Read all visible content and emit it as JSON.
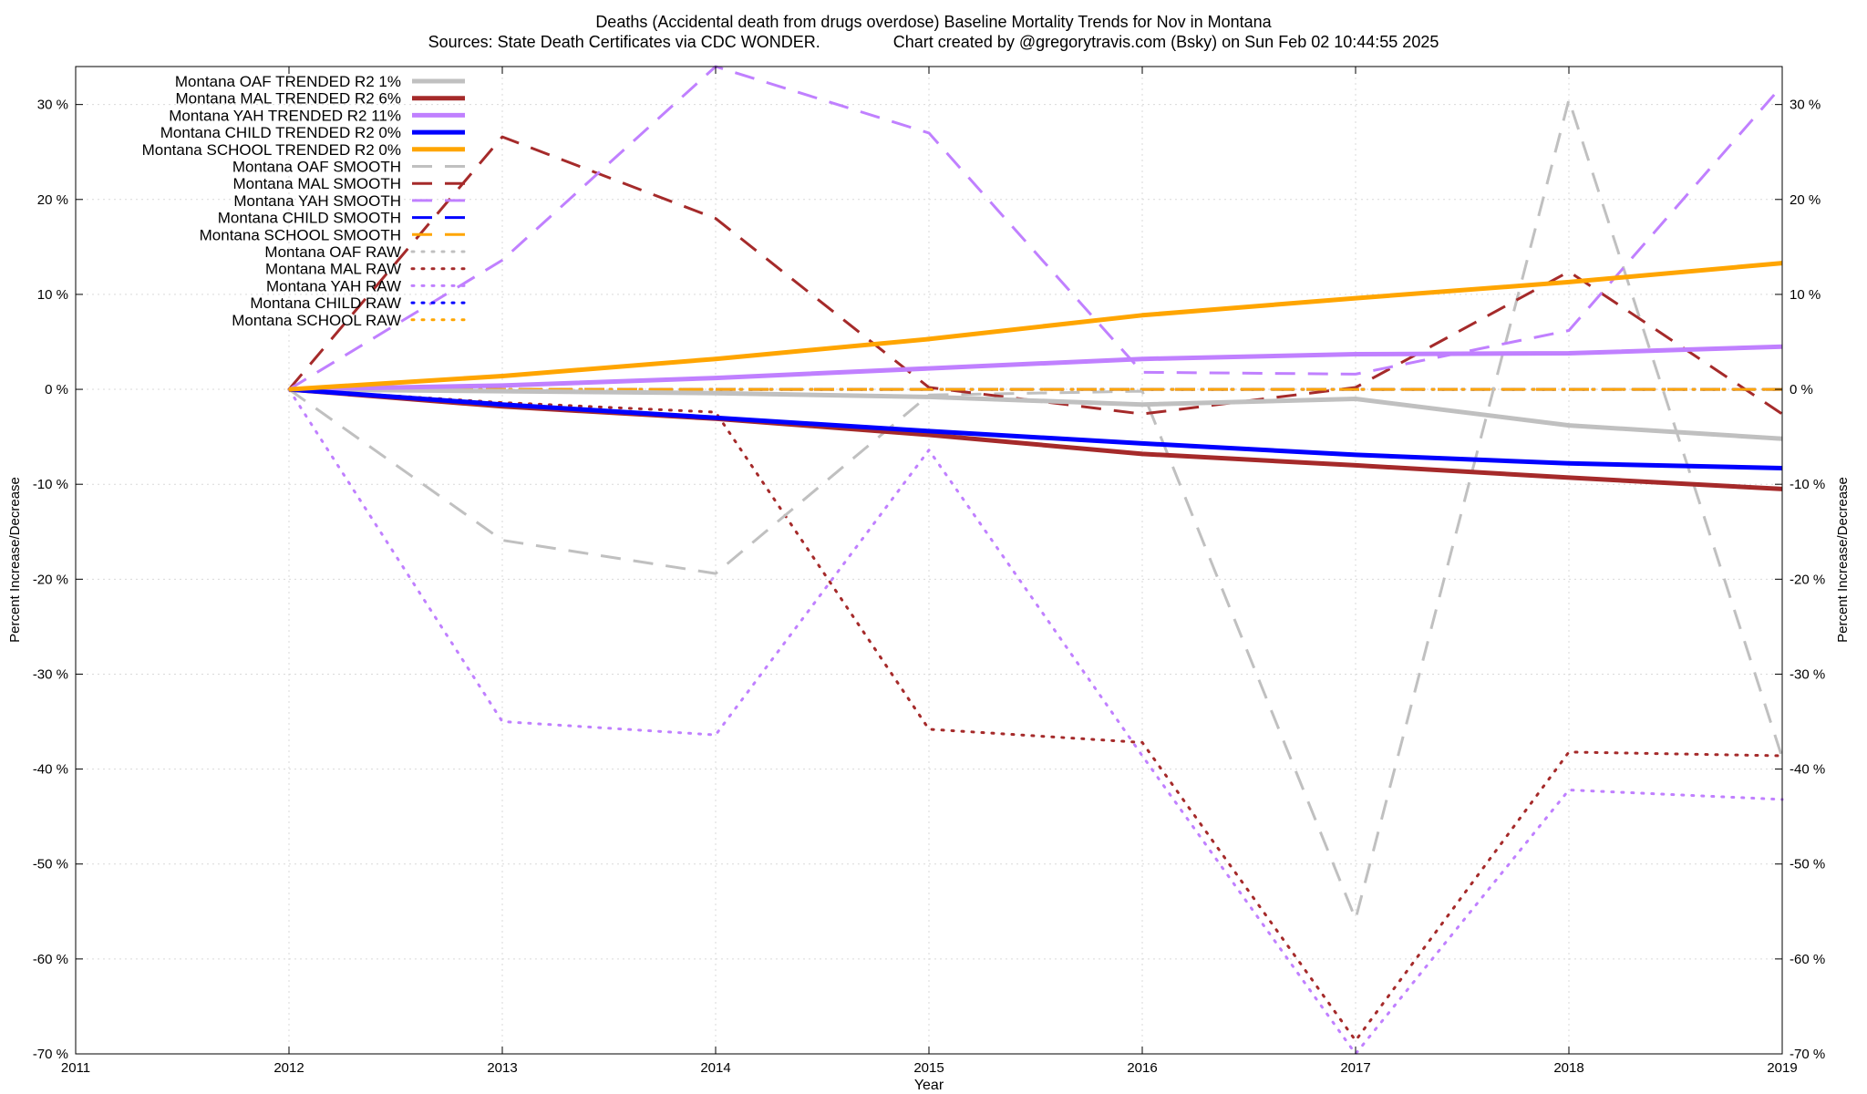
{
  "chart_data": {
    "type": "line",
    "title": "Deaths (Accidental death from drugs overdose)  Baseline Mortality Trends for Nov in Montana",
    "subtitle": "Sources: State Death Certificates via CDC WONDER.                Chart created by @gregorytravis.com (Bsky) on Sun Feb 02 10:44:55 2025",
    "xlabel": "Year",
    "ylabel": "Percent Increase/Decrease",
    "y2label": "Percent Increase/Decrease",
    "xlim": [
      2011,
      2019
    ],
    "ylim": [
      -70,
      34
    ],
    "x_ticks": [
      "2011",
      "2012",
      "2013",
      "2014",
      "2015",
      "2016",
      "2017",
      "2018",
      "2019"
    ],
    "y_ticks": [
      {
        "value": 30,
        "label": "30 %"
      },
      {
        "value": 20,
        "label": "20 %"
      },
      {
        "value": 10,
        "label": "10 %"
      },
      {
        "value": 0,
        "label": "0 %"
      },
      {
        "value": -10,
        "label": "-10 %"
      },
      {
        "value": -20,
        "label": "-20 %"
      },
      {
        "value": -30,
        "label": "-30 %"
      },
      {
        "value": -40,
        "label": "-40 %"
      },
      {
        "value": -50,
        "label": "-50 %"
      },
      {
        "value": -60,
        "label": "-60 %"
      },
      {
        "value": -70,
        "label": "-70 %"
      }
    ],
    "grid": true,
    "legend_placement": "top-left",
    "x": [
      2012,
      2013,
      2014,
      2015,
      2016,
      2017,
      2018,
      2019
    ],
    "series": [
      {
        "name": "Montana OAF TRENDED R2   1%",
        "style": "solid",
        "color": "#c0c0c0",
        "values": [
          0,
          -0.2,
          -0.4,
          -0.8,
          -1.6,
          -1.0,
          -3.8,
          -5.2
        ]
      },
      {
        "name": "Montana MAL TRENDED R2   6%",
        "style": "solid",
        "color": "#a52a2a",
        "values": [
          0,
          -1.8,
          -3.1,
          -4.8,
          -6.8,
          -8.0,
          -9.3,
          -10.5
        ]
      },
      {
        "name": "Montana YAH TRENDED R2  11%",
        "style": "solid",
        "color": "#c080ff",
        "values": [
          0,
          0.4,
          1.2,
          2.2,
          3.2,
          3.7,
          3.8,
          4.5
        ]
      },
      {
        "name": "Montana CHILD TRENDED R2   0%",
        "style": "solid",
        "color": "#0000ff",
        "values": [
          0,
          -1.6,
          -3.0,
          -4.4,
          -5.7,
          -6.9,
          -7.8,
          -8.3
        ]
      },
      {
        "name": "Montana SCHOOL TRENDED R2   0%",
        "style": "solid",
        "color": "#ffa500",
        "values": [
          0,
          1.4,
          3.2,
          5.3,
          7.8,
          9.6,
          11.3,
          13.3
        ]
      },
      {
        "name": "Montana OAF SMOOTH",
        "style": "dashed",
        "color": "#c0c0c0",
        "values": [
          0,
          -15.9,
          -19.4,
          -0.6,
          -0.2,
          -55.8,
          30.5,
          -38.8
        ]
      },
      {
        "name": "Montana MAL SMOOTH",
        "style": "dashed",
        "color": "#a52a2a",
        "values": [
          0,
          26.6,
          18.0,
          0.2,
          -2.6,
          0.2,
          12.4,
          -2.6
        ]
      },
      {
        "name": "Montana YAH SMOOTH",
        "style": "dashed",
        "color": "#c080ff",
        "values": [
          0,
          13.6,
          34.0,
          27.0,
          1.8,
          1.6,
          6.2,
          32.0
        ]
      },
      {
        "name": "Montana CHILD SMOOTH",
        "style": "dashed",
        "color": "#0000ff",
        "values": [
          0,
          0,
          0,
          0,
          0,
          0,
          0,
          0
        ]
      },
      {
        "name": "Montana SCHOOL SMOOTH",
        "style": "dashed",
        "color": "#ffa500",
        "values": [
          0,
          0,
          0,
          0,
          0,
          0,
          0,
          0
        ]
      },
      {
        "name": "Montana OAF RAW",
        "style": "dotted",
        "color": "#c0c0c0",
        "values": [
          0,
          0,
          0,
          0,
          0,
          0,
          0,
          0
        ]
      },
      {
        "name": "Montana MAL RAW",
        "style": "dotted",
        "color": "#a52a2a",
        "values": [
          0,
          -1.4,
          -2.4,
          -35.8,
          -37.2,
          -68.6,
          -38.2,
          -38.6
        ]
      },
      {
        "name": "Montana YAH RAW",
        "style": "dotted",
        "color": "#c080ff",
        "values": [
          0,
          -35.0,
          -36.4,
          -6.4,
          -38.6,
          -70.0,
          -42.2,
          -43.2
        ]
      },
      {
        "name": "Montana CHILD RAW",
        "style": "dotted",
        "color": "#0000ff",
        "values": [
          0,
          0,
          0,
          0,
          0,
          0,
          0,
          0
        ]
      },
      {
        "name": "Montana SCHOOL RAW",
        "style": "dotted",
        "color": "#ffa500",
        "values": [
          0,
          0,
          0,
          0,
          0,
          0,
          0,
          0
        ]
      }
    ]
  }
}
